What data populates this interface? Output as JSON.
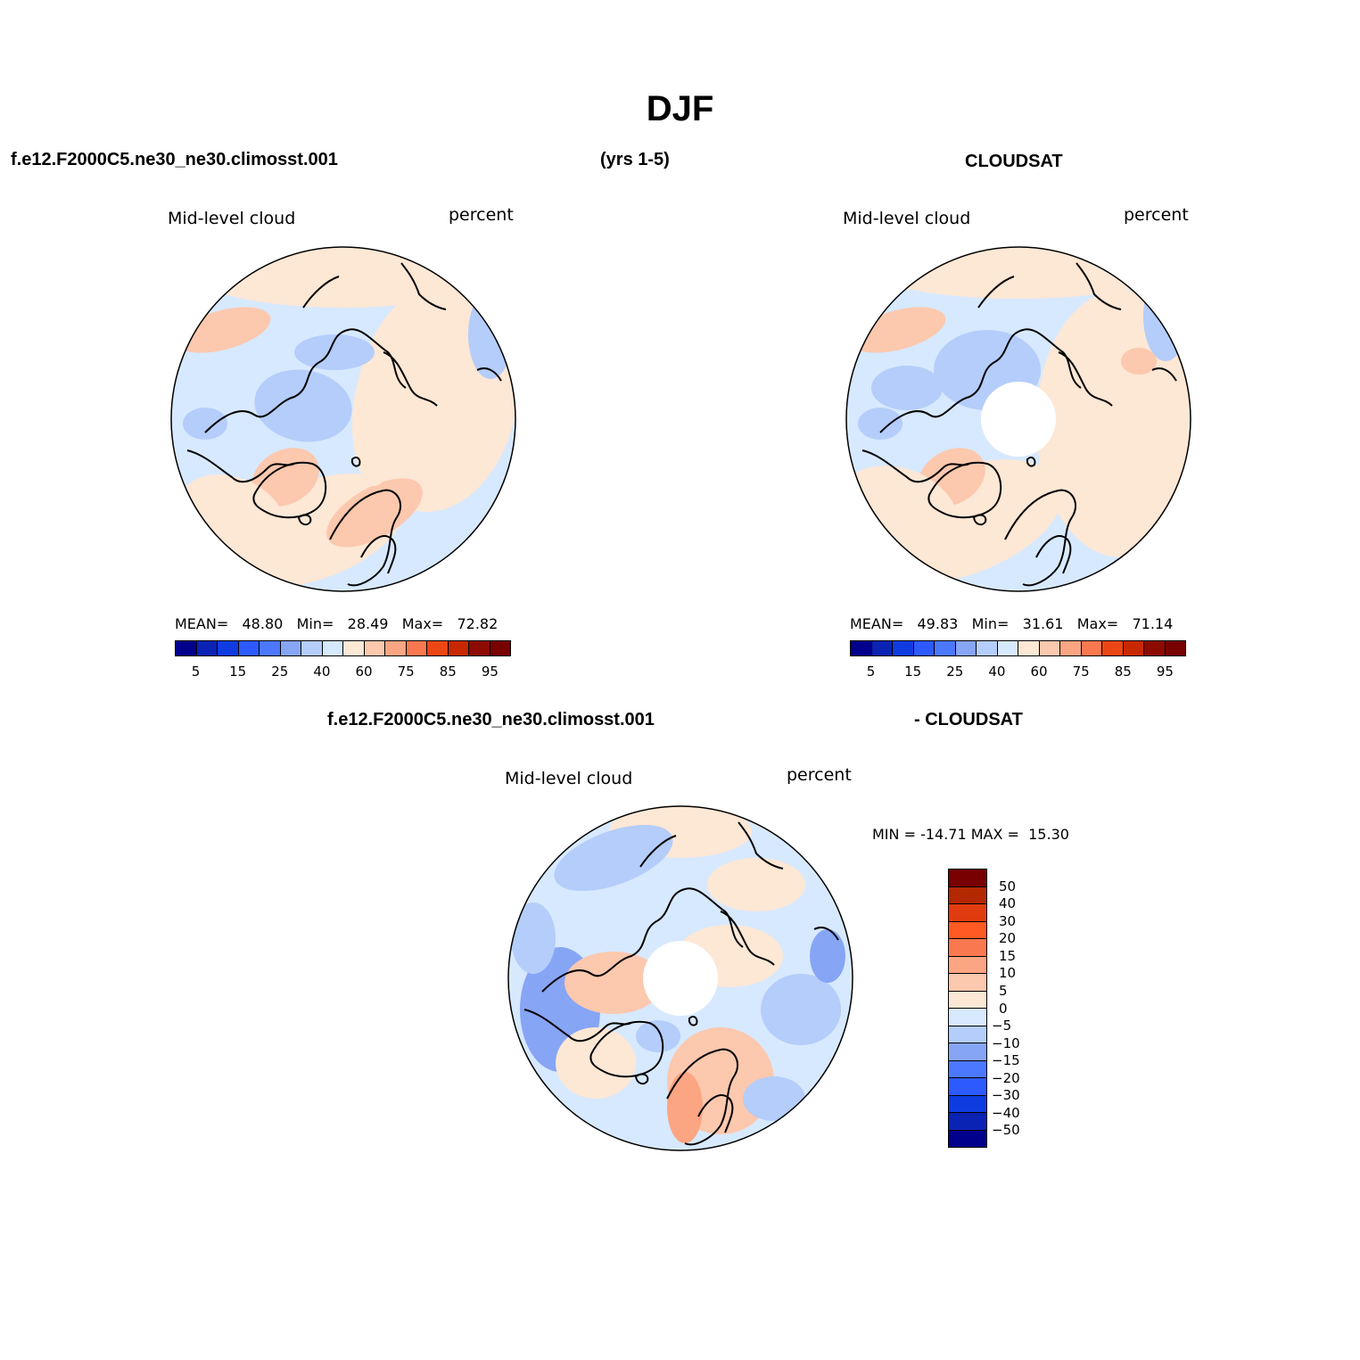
{
  "figure": {
    "title": "DJF",
    "case_name": "f.e12.F2000C5.ne30_ne30.climosst.001",
    "years": "(yrs 1-5)",
    "obs_name": "CLOUDSAT",
    "diff_case_name": "f.e12.F2000C5.ne30_ne30.climosst.001",
    "diff_obs_name": "- CLOUDSAT"
  },
  "panels": [
    {
      "field_label": "Mid-level cloud",
      "units_label": "percent",
      "stats": {
        "mean_label": "MEAN=",
        "mean": "48.80",
        "min_label": "Min=",
        "min": "28.49",
        "max_label": "Max=",
        "max": "72.82"
      },
      "has_polar_gap": false
    },
    {
      "field_label": "Mid-level cloud",
      "units_label": "percent",
      "stats": {
        "mean_label": "MEAN=",
        "mean": "49.83",
        "min_label": "Min=",
        "min": "31.61",
        "max_label": "Max=",
        "max": "71.14"
      },
      "has_polar_gap": true
    },
    {
      "field_label": "Mid-level cloud",
      "units_label": "percent",
      "stats": {
        "min_label": "MIN =",
        "min": "-14.71",
        "max_label": "MAX =",
        "max": "15.30"
      },
      "has_polar_gap": true
    }
  ],
  "colorbars": {
    "absolute": {
      "ticks": [
        "5",
        "15",
        "25",
        "40",
        "60",
        "75",
        "85",
        "95"
      ],
      "colors": [
        "#00008c",
        "#0a23b4",
        "#0f3ce1",
        "#2d5aff",
        "#4b78ff",
        "#87a5f5",
        "#b4cdfa",
        "#d7e9ff",
        "#fde7d5",
        "#fcc8ae",
        "#fca582",
        "#fa7850",
        "#eb4614",
        "#c82800",
        "#8c0a00",
        "#780000"
      ]
    },
    "difference": {
      "ticks": [
        "50",
        "40",
        "30",
        "20",
        "15",
        "10",
        "5",
        "0",
        "-5",
        "-10",
        "-15",
        "-20",
        "-30",
        "-40",
        "-50"
      ],
      "colors": [
        "#780000",
        "#b42800",
        "#e13c0f",
        "#ff5a23",
        "#fa7850",
        "#fca582",
        "#fcc8ae",
        "#fde7d5",
        "#d7e9ff",
        "#b4cdfa",
        "#87a5f5",
        "#4b78ff",
        "#2d5aff",
        "#0f3ce1",
        "#0a23b4",
        "#00008c"
      ]
    }
  },
  "palette": {
    "light_blue": "#d7e9ff",
    "mid_blue": "#b4cdfa",
    "blue": "#87a5f5",
    "peach": "#fde7d5",
    "salmon": "#fcc8ae",
    "orange": "#fca582"
  }
}
